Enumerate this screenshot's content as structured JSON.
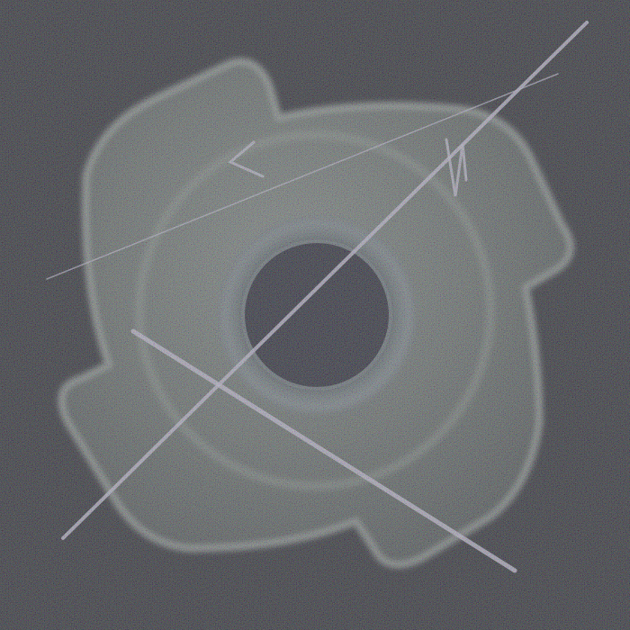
{
  "scene": {
    "subject": "tee-nut-icon",
    "background_color": "#0d0f0c",
    "metal_color": "#a9b6a4",
    "metal_highlight": "#d8e6cf",
    "hole_color": "#0a0c10",
    "scratch_color": "#d9d4e4",
    "noise": "heavy-color-speckle"
  }
}
